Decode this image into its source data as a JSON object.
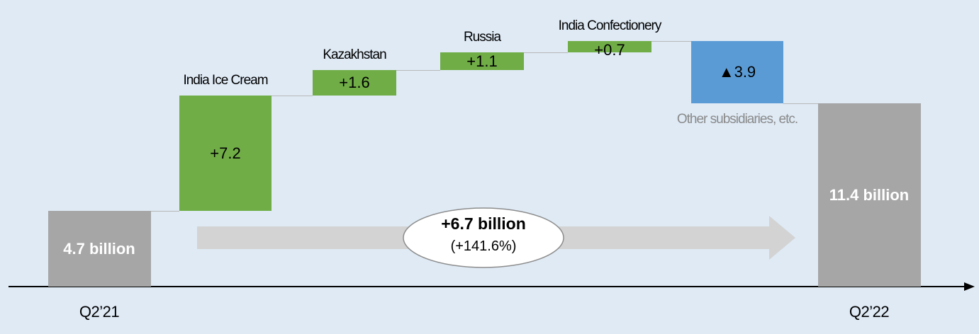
{
  "chart_data": {
    "type": "waterfall",
    "categories": [
      "Q2’21",
      "India Ice Cream",
      "Kazakhstan",
      "Russia",
      "India Confectionery",
      "Other subsidiaries, etc.",
      "Q2’22"
    ],
    "values": [
      4.7,
      7.2,
      1.6,
      1.1,
      0.7,
      -3.9,
      11.4
    ],
    "value_labels": [
      "4.7 billion",
      "+7.2",
      "+1.6",
      "+1.1",
      "+0.7",
      "▲3.9",
      "11.4 billion"
    ],
    "measures": [
      "total",
      "relative",
      "relative",
      "relative",
      "relative",
      "relative",
      "total"
    ],
    "colors": [
      "#a6a6a6",
      "#70ad47",
      "#70ad47",
      "#70ad47",
      "#70ad47",
      "#5b9bd5",
      "#a6a6a6"
    ],
    "annotation": {
      "title": "+6.7 billion",
      "subtitle": "(+141.6%)"
    }
  }
}
